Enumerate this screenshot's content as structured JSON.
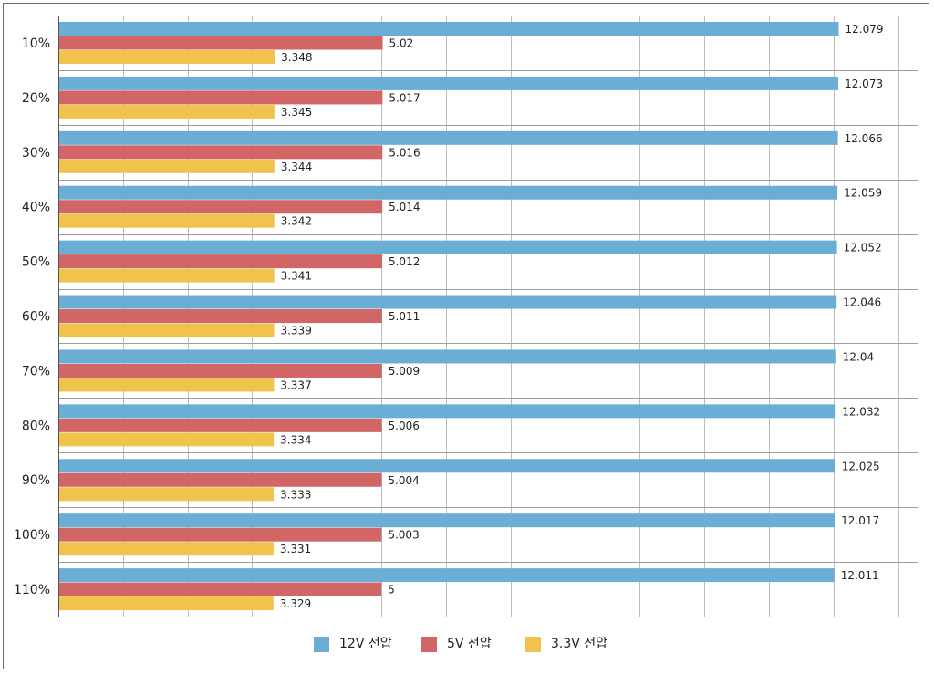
{
  "chart_data": {
    "type": "bar",
    "orientation": "horizontal",
    "categories": [
      "10%",
      "20%",
      "30%",
      "40%",
      "50%",
      "60%",
      "70%",
      "80%",
      "90%",
      "100%",
      "110%"
    ],
    "series": [
      {
        "name": "12V 전압",
        "color": "#6aaed6",
        "values": [
          12.079,
          12.073,
          12.066,
          12.059,
          12.052,
          12.046,
          12.04,
          12.032,
          12.025,
          12.017,
          12.011
        ]
      },
      {
        "name": "5V 전압",
        "color": "#d26666",
        "values": [
          5.02,
          5.017,
          5.016,
          5.014,
          5.012,
          5.011,
          5.009,
          5.006,
          5.004,
          5.003,
          5
        ]
      },
      {
        "name": "3.3V 전압",
        "color": "#f0c44c",
        "values": [
          3.348,
          3.345,
          3.344,
          3.342,
          3.341,
          3.339,
          3.337,
          3.334,
          3.333,
          3.331,
          3.329
        ]
      }
    ],
    "xlim": [
      0,
      13.3
    ],
    "grid": true,
    "legend": "bottom-center",
    "title": "",
    "xlabel": "",
    "ylabel": ""
  }
}
